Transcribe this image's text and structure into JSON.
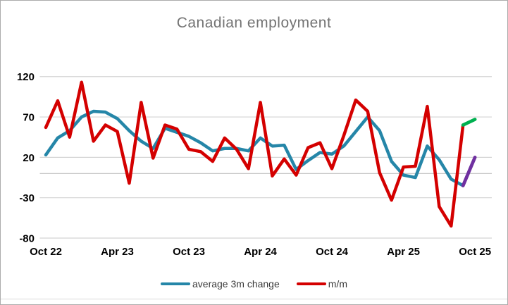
{
  "title": "Canadian employment",
  "colors": {
    "m_m_red": "#d40000",
    "avg_3m_blue": "#2586a8",
    "latest_m_m_green": "#00b050",
    "latest_avg_purple": "#7030a0",
    "title_text": "#737373",
    "axis_text": "#000000",
    "gridline": "#d4d4d4",
    "zero_axis_line": "#c0c0c0",
    "legend_text": "#3a3a3a",
    "window_border": "#ababab"
  },
  "legend": {
    "items": [
      {
        "label": "average 3m change",
        "color": "#2586a8"
      },
      {
        "label": "m/m",
        "color": "#d40000"
      }
    ]
  },
  "chart_data": {
    "type": "line",
    "title": "Canadian employment",
    "xlabel": "",
    "ylabel": "",
    "ylim": [
      -80,
      120
    ],
    "y_ticks": [
      120,
      70,
      20,
      -30,
      -80
    ],
    "grid": true,
    "zero_axis_line": true,
    "legend_position": "bottom",
    "x": [
      "Oct 22",
      "Nov 22",
      "Dec 22",
      "Jan 23",
      "Feb 23",
      "Mar 23",
      "Apr 23",
      "May 23",
      "Jun 23",
      "Jul 23",
      "Aug 23",
      "Sep 23",
      "Oct 23",
      "Nov 23",
      "Dec 23",
      "Jan 24",
      "Feb 24",
      "Mar 24",
      "Apr 24",
      "May 24",
      "Jun 24",
      "Jul 24",
      "Aug 24",
      "Sep 24",
      "Oct 24",
      "Nov 24",
      "Dec 24",
      "Jan 25",
      "Feb 25",
      "Mar 25",
      "Apr 25",
      "May 25",
      "Jun 25",
      "Jul 25",
      "Aug 25",
      "Sep 25",
      "Oct 25"
    ],
    "x_tick_labels": [
      {
        "index": 0,
        "label": "Oct 22"
      },
      {
        "index": 6,
        "label": "Apr 23"
      },
      {
        "index": 12,
        "label": "Oct 23"
      },
      {
        "index": 18,
        "label": "Apr 24"
      },
      {
        "index": 24,
        "label": "Oct 24"
      },
      {
        "index": 30,
        "label": "Apr 25"
      },
      {
        "index": 36,
        "label": "Oct 25"
      }
    ],
    "series": [
      {
        "name": "average 3m change",
        "color": "#2586a8",
        "final_segment_color": "#7030a0",
        "values": [
          23,
          44,
          53,
          70,
          77,
          76,
          68,
          53,
          40,
          31,
          56,
          51,
          46,
          38,
          28,
          31,
          31,
          28,
          44,
          34,
          35,
          5,
          16,
          26,
          24,
          34,
          52,
          70,
          53,
          15,
          -2,
          -5,
          34,
          17,
          -7,
          -15,
          20
        ]
      },
      {
        "name": "m/m",
        "color": "#d40000",
        "final_segment_color": "#00b050",
        "values": [
          57,
          90,
          45,
          113,
          40,
          60,
          52,
          -12,
          88,
          19,
          60,
          55,
          30,
          27,
          15,
          44,
          30,
          6,
          88,
          -3,
          18,
          -2,
          32,
          38,
          6,
          47,
          91,
          77,
          1,
          -33,
          8,
          9,
          83,
          -41,
          -65,
          60,
          67
        ]
      }
    ]
  }
}
